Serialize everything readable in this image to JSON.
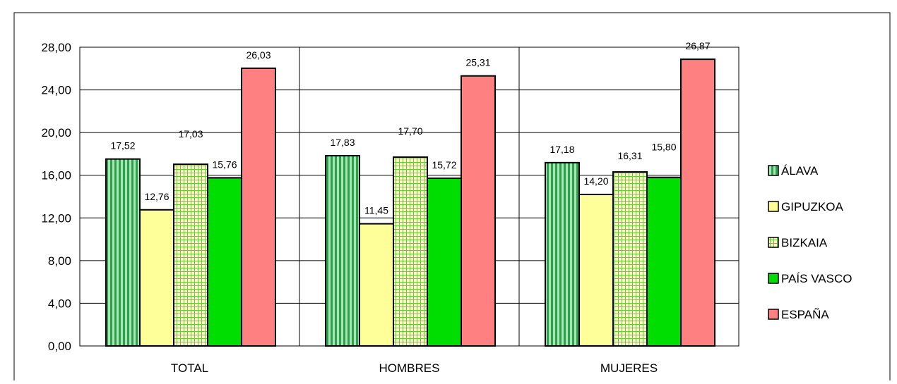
{
  "chart_data": {
    "type": "bar",
    "categories": [
      "TOTAL",
      "HOMBRES",
      "MUJERES"
    ],
    "series": [
      {
        "name": "ÁLAVA",
        "values": [
          17.52,
          17.83,
          17.18
        ],
        "color": "#3cb371",
        "pattern": "vertical-stripes"
      },
      {
        "name": "GIPUZKOA",
        "values": [
          12.76,
          11.45,
          14.2
        ],
        "color": "#ffff99",
        "pattern": "solid"
      },
      {
        "name": "BIZKAIA",
        "values": [
          17.03,
          17.7,
          16.31
        ],
        "color": "#ccffcc",
        "pattern": "green-grid"
      },
      {
        "name": "PAÍS VASCO",
        "values": [
          15.76,
          15.72,
          15.8
        ],
        "color": "#00dd00",
        "pattern": "solid"
      },
      {
        "name": "ESPAÑA",
        "values": [
          26.03,
          25.31,
          26.87
        ],
        "color": "#ff8080",
        "pattern": "solid"
      }
    ],
    "value_labels": [
      [
        "17,52",
        "17,83",
        "17,18"
      ],
      [
        "12,76",
        "11,45",
        "14,20"
      ],
      [
        "17,03",
        "17,70",
        "16,31"
      ],
      [
        "15,76",
        "15,72",
        "15,80"
      ],
      [
        "26,03",
        "25,31",
        "26,87"
      ]
    ],
    "y_ticks": [
      "0,00",
      "4,00",
      "8,00",
      "12,00",
      "16,00",
      "20,00",
      "24,00",
      "28,00"
    ],
    "ylim": [
      0,
      28
    ],
    "grid": true,
    "legend_position": "right",
    "title": "",
    "xlabel": "",
    "ylabel": ""
  }
}
